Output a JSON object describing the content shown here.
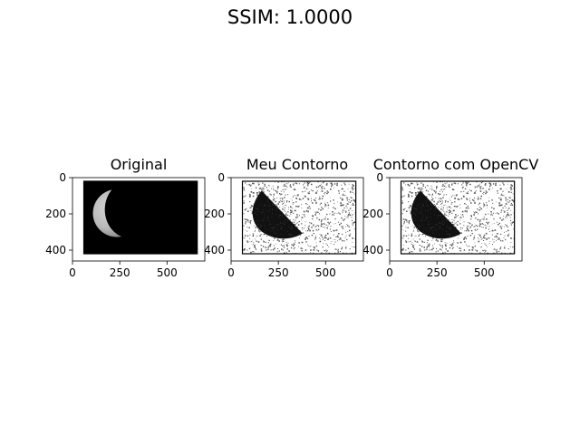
{
  "figure": {
    "suptitle": "SSIM: 1.0000"
  },
  "chart_data": [
    {
      "type": "image",
      "title": "Original",
      "xlim": [
        0,
        700
      ],
      "ylim": [
        460,
        0
      ],
      "xticks": [
        0,
        250,
        500
      ],
      "yticks": [
        0,
        200,
        400
      ],
      "xtick_labels": [
        "0",
        "250",
        "500"
      ],
      "ytick_labels": [
        "0",
        "200",
        "400"
      ],
      "image_extent": [
        60,
        660,
        20,
        420
      ],
      "content": "crescent moon",
      "colors": {
        "background": "#000000",
        "moon": "#b8b8b8"
      }
    },
    {
      "type": "image",
      "title": "Meu Contorno",
      "xlim": [
        0,
        700
      ],
      "ylim": [
        460,
        0
      ],
      "xticks": [
        0,
        250,
        500
      ],
      "yticks": [
        0,
        200,
        400
      ],
      "xtick_labels": [
        "0",
        "250",
        "500"
      ],
      "ytick_labels": [
        "0",
        "200",
        "400"
      ],
      "image_extent": [
        60,
        660,
        20,
        420
      ],
      "content": "contour",
      "colors": {
        "background": "#ffffff",
        "foreground": "#000000"
      }
    },
    {
      "type": "image",
      "title": "Contorno com OpenCV",
      "xlim": [
        0,
        700
      ],
      "ylim": [
        460,
        0
      ],
      "xticks": [
        0,
        250,
        500
      ],
      "yticks": [
        0,
        200,
        400
      ],
      "xtick_labels": [
        "0",
        "250",
        "500"
      ],
      "ytick_labels": [
        "0",
        "200",
        "400"
      ],
      "image_extent": [
        60,
        660,
        20,
        420
      ],
      "content": "contour",
      "colors": {
        "background": "#ffffff",
        "foreground": "#000000"
      }
    }
  ]
}
